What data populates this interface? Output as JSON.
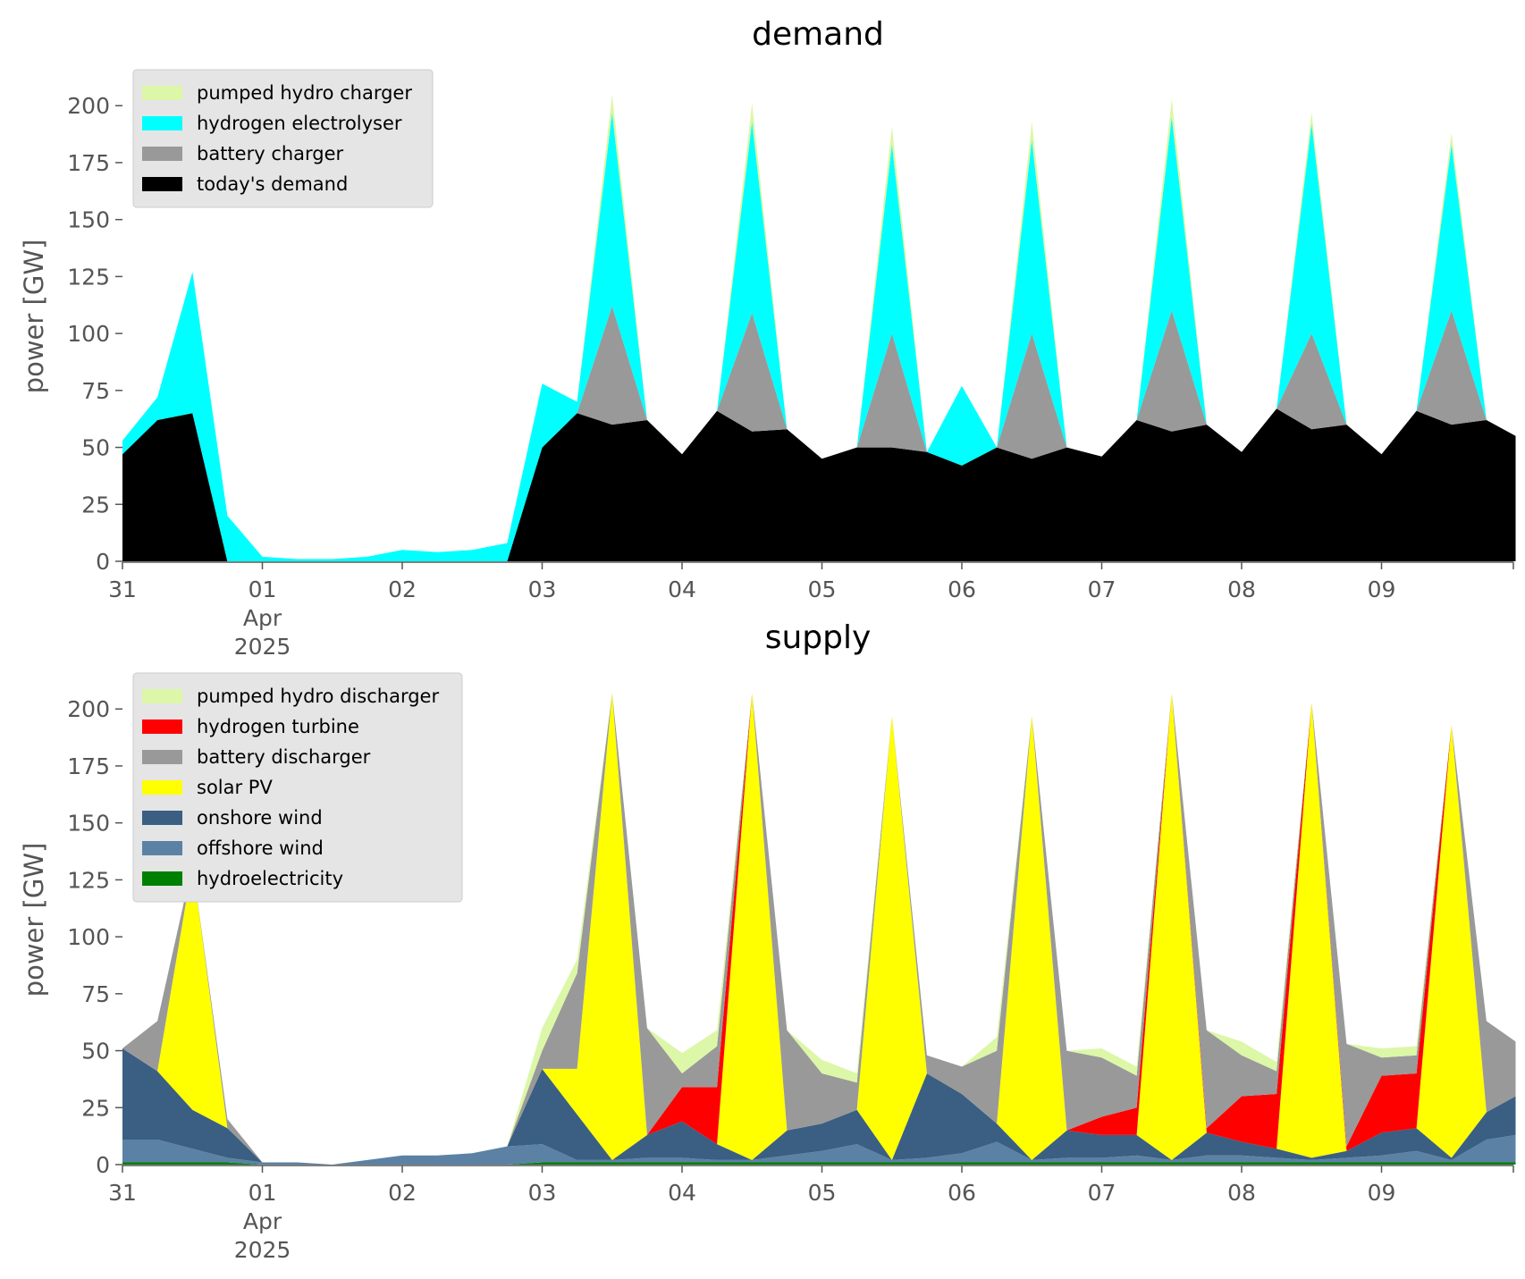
{
  "chart_data": [
    {
      "type": "area",
      "stacked": true,
      "title": "demand",
      "xlabel": "",
      "ylabel": "power [GW]",
      "ylim": [
        0,
        215
      ],
      "yticks": [
        0,
        25,
        50,
        75,
        100,
        125,
        150,
        175,
        200
      ],
      "x_axis": {
        "unit": "days",
        "range": [
          "2025-03-31T00:00",
          "2025-04-09T23:00"
        ],
        "ticks": [
          "31",
          "01",
          "02",
          "03",
          "04",
          "05",
          "06",
          "07",
          "08",
          "09"
        ],
        "secondary_label": [
          "Apr",
          "2025"
        ]
      },
      "grid": false,
      "legend": "top-left",
      "x": [
        "03-31 00",
        "03-31 06",
        "03-31 12",
        "03-31 18",
        "04-01 00",
        "04-01 06",
        "04-01 12",
        "04-01 18",
        "04-02 00",
        "04-02 06",
        "04-02 12",
        "04-02 18",
        "04-03 00",
        "04-03 06",
        "04-03 12",
        "04-03 18",
        "04-04 00",
        "04-04 06",
        "04-04 12",
        "04-04 18",
        "04-05 00",
        "04-05 06",
        "04-05 12",
        "04-05 18",
        "04-06 00",
        "04-06 06",
        "04-06 12",
        "04-06 18",
        "04-07 00",
        "04-07 06",
        "04-07 12",
        "04-07 18",
        "04-08 00",
        "04-08 06",
        "04-08 12",
        "04-08 18",
        "04-09 00",
        "04-09 06",
        "04-09 12",
        "04-09 18",
        "04-09 23"
      ],
      "series": [
        {
          "name": "today's demand",
          "color": "#000000",
          "values": [
            47,
            62,
            65,
            0,
            0,
            0,
            0,
            0,
            0,
            0,
            0,
            0,
            50,
            65,
            60,
            62,
            47,
            66,
            57,
            58,
            45,
            50,
            50,
            48,
            42,
            50,
            45,
            50,
            46,
            62,
            57,
            60,
            48,
            67,
            58,
            60,
            47,
            66,
            60,
            62,
            55
          ]
        },
        {
          "name": "battery charger",
          "color": "#999999",
          "values": [
            0,
            0,
            0,
            0,
            0,
            0,
            0,
            0,
            0,
            0,
            0,
            0,
            0,
            0,
            52,
            0,
            0,
            0,
            52,
            0,
            0,
            0,
            50,
            0,
            0,
            0,
            55,
            0,
            0,
            0,
            53,
            0,
            0,
            0,
            42,
            0,
            0,
            0,
            50,
            0,
            0
          ]
        },
        {
          "name": "hydrogen electrolyser",
          "color": "#00ffff",
          "values": [
            6,
            10,
            62,
            20,
            2,
            1,
            1,
            2,
            5,
            4,
            5,
            8,
            28,
            5,
            85,
            0,
            0,
            0,
            84,
            0,
            0,
            0,
            83,
            0,
            35,
            0,
            85,
            0,
            0,
            0,
            85,
            0,
            0,
            0,
            92,
            0,
            0,
            0,
            73,
            0,
            0
          ]
        },
        {
          "name": "pumped hydro charger",
          "color": "#dcf7a7",
          "values": [
            0,
            0,
            0,
            0,
            0,
            0,
            0,
            0,
            0,
            0,
            0,
            0,
            0,
            0,
            8,
            0,
            0,
            0,
            8,
            0,
            0,
            0,
            8,
            0,
            0,
            0,
            8,
            0,
            0,
            0,
            8,
            0,
            0,
            0,
            5,
            0,
            0,
            0,
            5,
            0,
            0
          ]
        }
      ],
      "legend_order": [
        "pumped hydro charger",
        "hydrogen electrolyser",
        "battery charger",
        "today's demand"
      ]
    },
    {
      "type": "area",
      "stacked": true,
      "title": "supply",
      "xlabel": "",
      "ylabel": "power [GW]",
      "ylim": [
        0,
        215
      ],
      "yticks": [
        0,
        25,
        50,
        75,
        100,
        125,
        150,
        175,
        200
      ],
      "x_axis": {
        "unit": "days",
        "range": [
          "2025-03-31T00:00",
          "2025-04-09T23:00"
        ],
        "ticks": [
          "31",
          "01",
          "02",
          "03",
          "04",
          "05",
          "06",
          "07",
          "08",
          "09"
        ],
        "secondary_label": [
          "Apr",
          "2025"
        ]
      },
      "grid": false,
      "legend": "top-left",
      "x": [
        "03-31 00",
        "03-31 06",
        "03-31 12",
        "03-31 18",
        "04-01 00",
        "04-01 06",
        "04-01 12",
        "04-01 18",
        "04-02 00",
        "04-02 06",
        "04-02 12",
        "04-02 18",
        "04-03 00",
        "04-03 06",
        "04-03 12",
        "04-03 18",
        "04-04 00",
        "04-04 06",
        "04-04 12",
        "04-04 18",
        "04-05 00",
        "04-05 06",
        "04-05 12",
        "04-05 18",
        "04-06 00",
        "04-06 06",
        "04-06 12",
        "04-06 18",
        "04-07 00",
        "04-07 06",
        "04-07 12",
        "04-07 18",
        "04-08 00",
        "04-08 06",
        "04-08 12",
        "04-08 18",
        "04-09 00",
        "04-09 06",
        "04-09 12",
        "04-09 18",
        "04-09 23"
      ],
      "series": [
        {
          "name": "hydroelectricity",
          "color": "#008000",
          "values": [
            1,
            1,
            1,
            1,
            0,
            0,
            0,
            0,
            0,
            0,
            0,
            0,
            1,
            1,
            1,
            1,
            1,
            1,
            1,
            1,
            1,
            1,
            1,
            1,
            1,
            1,
            1,
            1,
            1,
            1,
            1,
            1,
            1,
            1,
            1,
            1,
            1,
            1,
            1,
            1,
            1
          ]
        },
        {
          "name": "offshore wind",
          "color": "#5b82a4",
          "values": [
            10,
            10,
            6,
            2,
            1,
            1,
            0,
            2,
            4,
            4,
            5,
            8,
            8,
            1,
            1,
            2,
            2,
            1,
            1,
            3,
            5,
            8,
            1,
            2,
            4,
            9,
            1,
            2,
            2,
            3,
            1,
            3,
            3,
            2,
            1,
            2,
            3,
            5,
            1,
            10,
            12
          ]
        },
        {
          "name": "onshore wind",
          "color": "#3a5f82",
          "values": [
            40,
            30,
            17,
            13,
            0,
            0,
            0,
            0,
            0,
            0,
            0,
            0,
            33,
            20,
            0,
            10,
            16,
            7,
            0,
            11,
            12,
            15,
            0,
            37,
            26,
            8,
            0,
            12,
            10,
            9,
            0,
            10,
            6,
            4,
            1,
            3,
            10,
            10,
            1,
            12,
            17
          ]
        },
        {
          "name": "solar PV",
          "color": "#ffff00",
          "values": [
            0,
            0,
            108,
            0,
            0,
            0,
            0,
            0,
            0,
            0,
            0,
            0,
            0,
            20,
            205,
            0,
            0,
            0,
            205,
            0,
            0,
            0,
            195,
            0,
            0,
            0,
            195,
            0,
            0,
            0,
            205,
            0,
            0,
            0,
            200,
            0,
            0,
            0,
            190,
            0,
            0
          ]
        },
        {
          "name": "hydrogen turbine",
          "color": "#ff0000",
          "values": [
            0,
            0,
            0,
            0,
            0,
            0,
            0,
            0,
            0,
            0,
            0,
            0,
            0,
            0,
            0,
            0,
            15,
            25,
            0,
            0,
            0,
            0,
            0,
            0,
            0,
            0,
            0,
            0,
            8,
            12,
            0,
            2,
            20,
            24,
            0,
            2,
            25,
            24,
            0,
            0,
            0
          ]
        },
        {
          "name": "battery discharger",
          "color": "#999999",
          "values": [
            0,
            22,
            0,
            4,
            0,
            0,
            0,
            0,
            0,
            0,
            0,
            0,
            8,
            42,
            0,
            47,
            6,
            18,
            0,
            44,
            22,
            12,
            0,
            8,
            12,
            32,
            0,
            35,
            26,
            14,
            0,
            43,
            18,
            10,
            0,
            45,
            8,
            8,
            0,
            40,
            24
          ]
        },
        {
          "name": "pumped hydro discharger",
          "color": "#dcf7a7",
          "values": [
            0,
            0,
            0,
            0,
            0,
            0,
            0,
            0,
            0,
            0,
            0,
            0,
            10,
            6,
            0,
            0,
            9,
            7,
            0,
            0,
            6,
            4,
            0,
            0,
            0,
            6,
            0,
            0,
            4,
            4,
            0,
            0,
            6,
            4,
            0,
            0,
            4,
            4,
            0,
            0,
            0
          ]
        }
      ],
      "legend_order": [
        "pumped hydro discharger",
        "hydrogen turbine",
        "battery discharger",
        "solar PV",
        "onshore wind",
        "offshore wind",
        "hydroelectricity"
      ]
    }
  ]
}
